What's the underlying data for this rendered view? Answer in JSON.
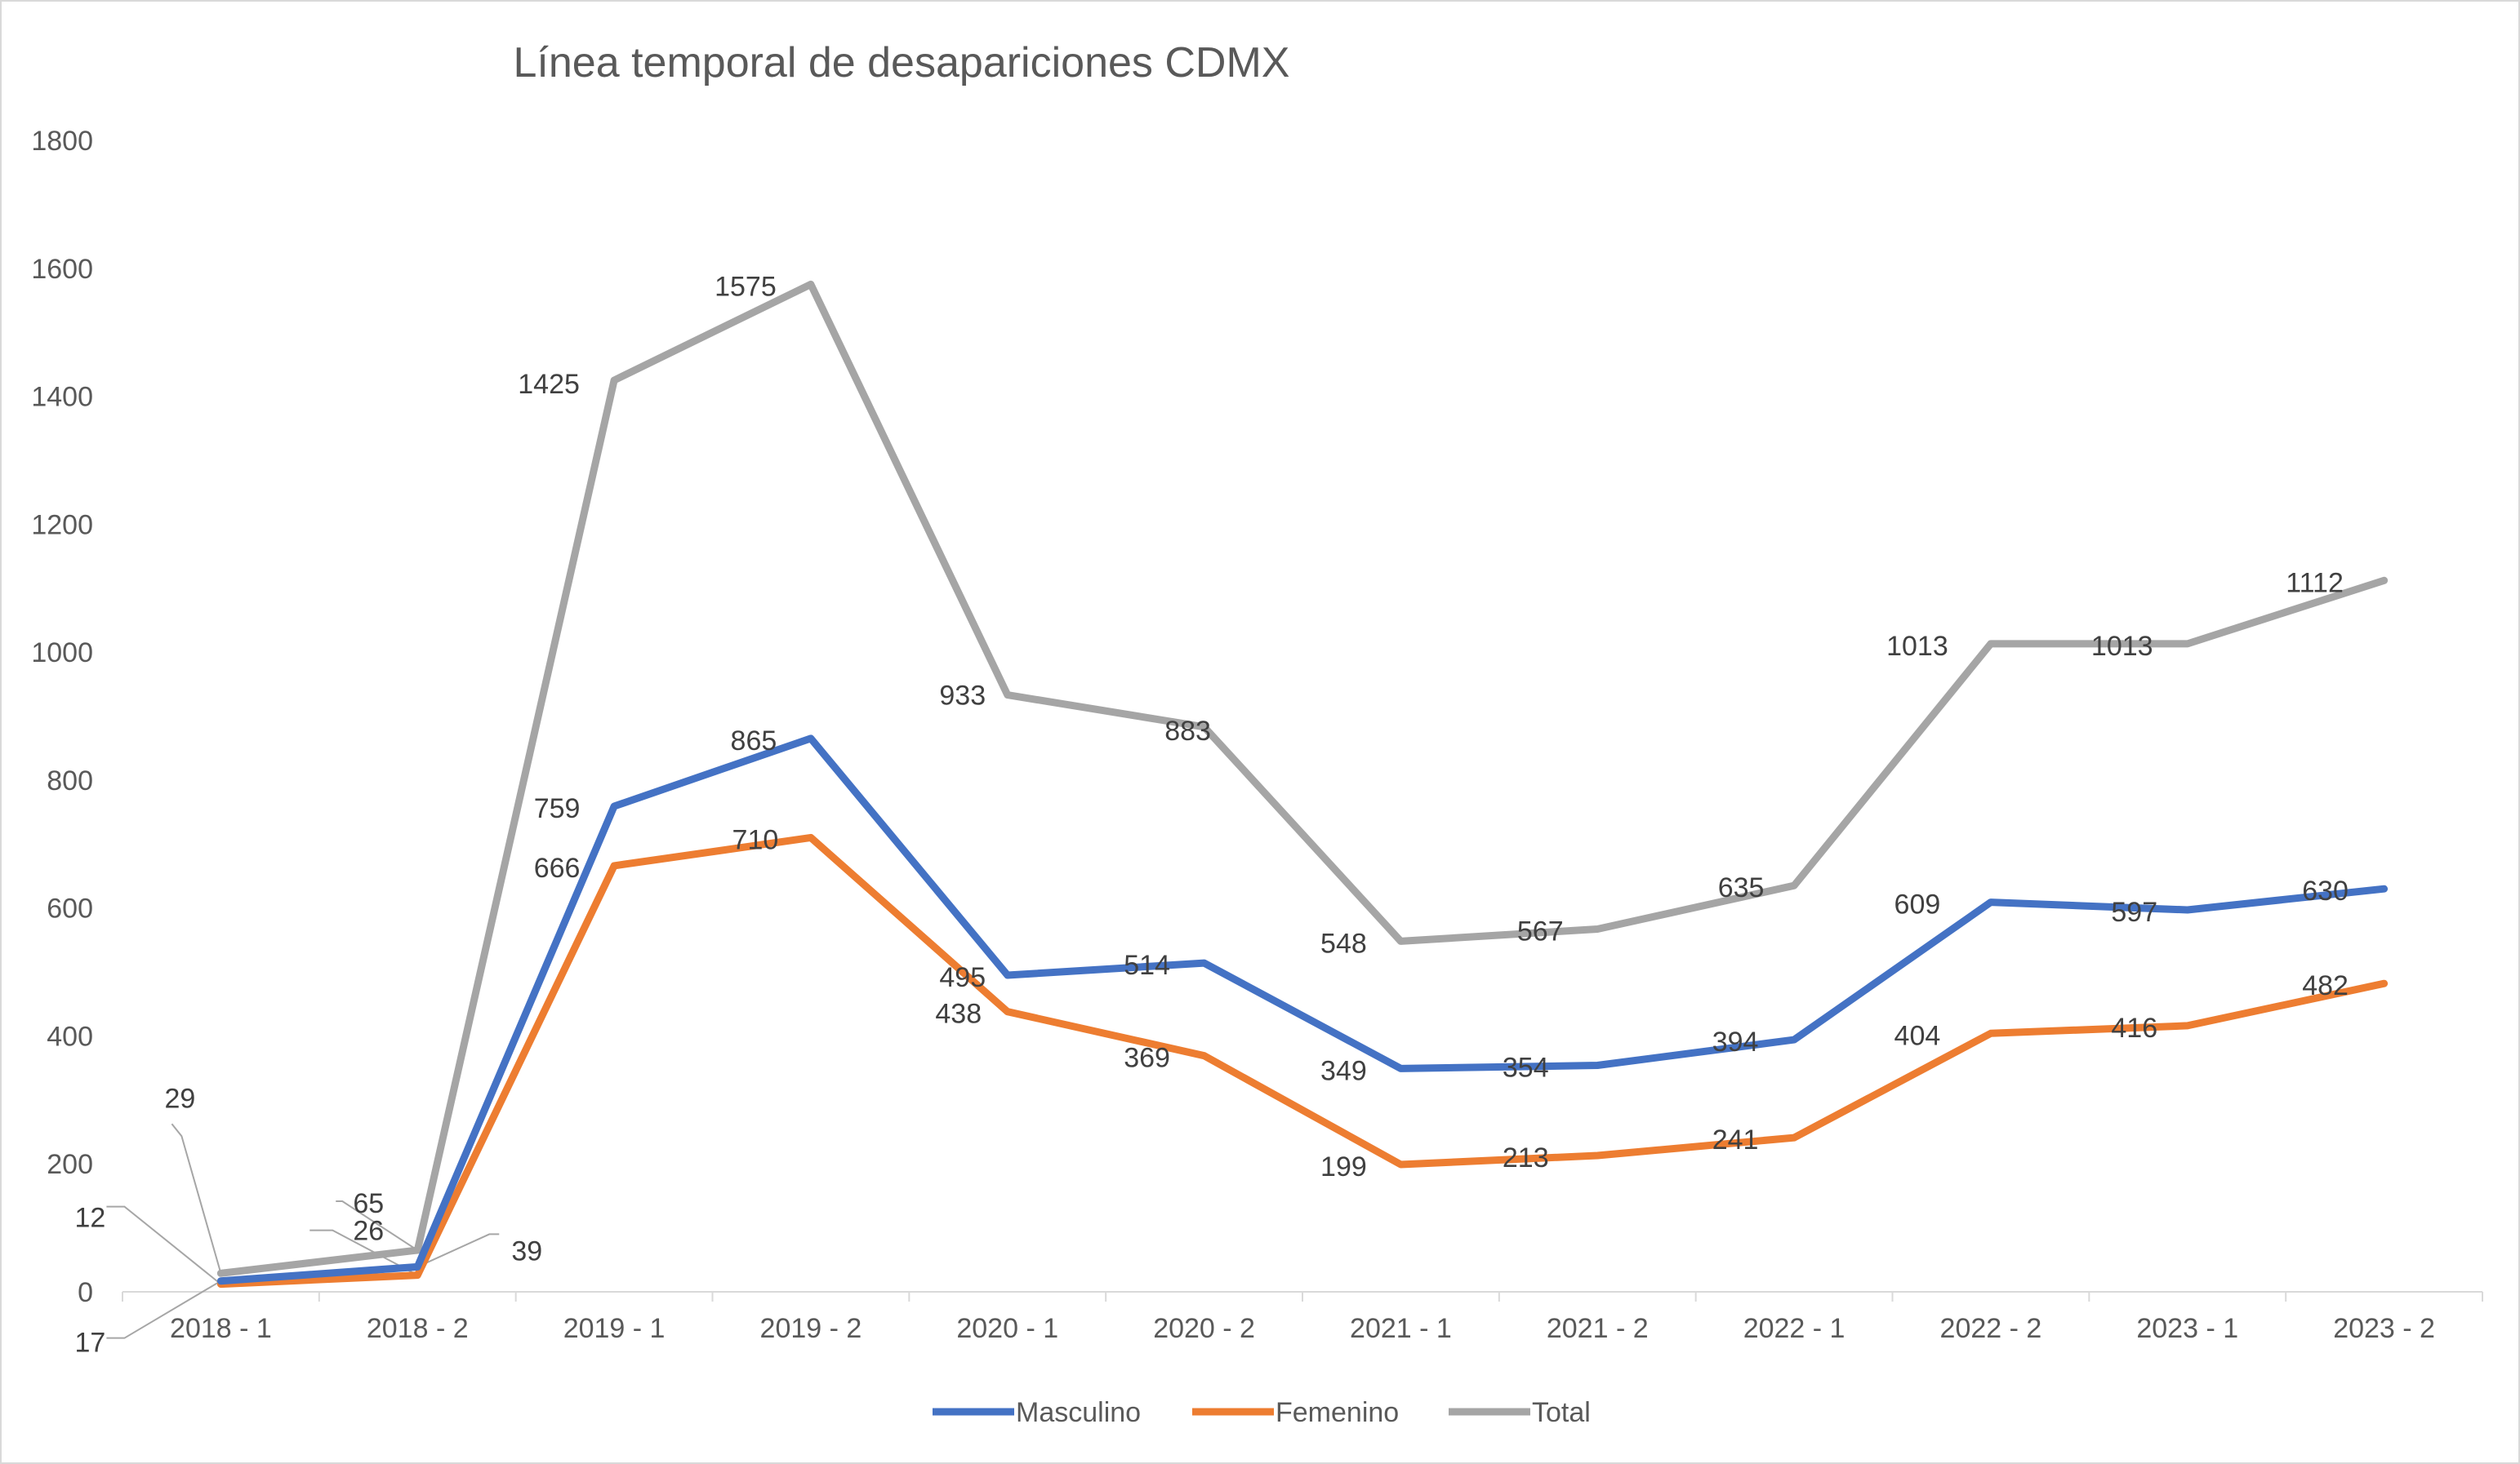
{
  "chart_data": {
    "type": "line",
    "title": "Línea temporal de desapariciones CDMX",
    "xlabel": "",
    "ylabel": "",
    "categories": [
      "2018 - 1",
      "2018 - 2",
      "2019 - 1",
      "2019 - 2",
      "2020 - 1",
      "2020 - 2",
      "2021 - 1",
      "2021 - 2",
      "2022 - 1",
      "2022 - 2",
      "2023 - 1",
      "2023 - 2"
    ],
    "ylim": [
      0,
      1800
    ],
    "yticks": [
      "0",
      "200",
      "400",
      "600",
      "800",
      "1000",
      "1200",
      "1400",
      "1600",
      "1800"
    ],
    "grid": false,
    "legend_position": "bottom",
    "series": [
      {
        "name": "Masculino",
        "color": "#4472c4",
        "values": [
          17,
          39,
          759,
          865,
          495,
          514,
          349,
          354,
          394,
          609,
          597,
          630
        ]
      },
      {
        "name": "Femenino",
        "color": "#ed7d31",
        "values": [
          12,
          26,
          666,
          710,
          438,
          369,
          199,
          213,
          241,
          404,
          416,
          482
        ]
      },
      {
        "name": "Total",
        "color": "#a5a5a5",
        "values": [
          29,
          65,
          1425,
          1575,
          933,
          883,
          548,
          567,
          635,
          1013,
          1013,
          1112
        ]
      }
    ],
    "data_labels": {
      "Masculino": [
        "17",
        "39",
        "759",
        "865",
        "495",
        "514",
        "349",
        "354",
        "394",
        "609",
        "597",
        "630"
      ],
      "Femenino": [
        "12",
        "26",
        "666",
        "710",
        "438",
        "369",
        "199",
        "213",
        "241",
        "404",
        "416",
        "482"
      ],
      "Total": [
        "29",
        "65",
        "1425",
        "1575",
        "933",
        "883",
        "548",
        "567",
        "635",
        "1013",
        "1013",
        "1112"
      ]
    }
  }
}
